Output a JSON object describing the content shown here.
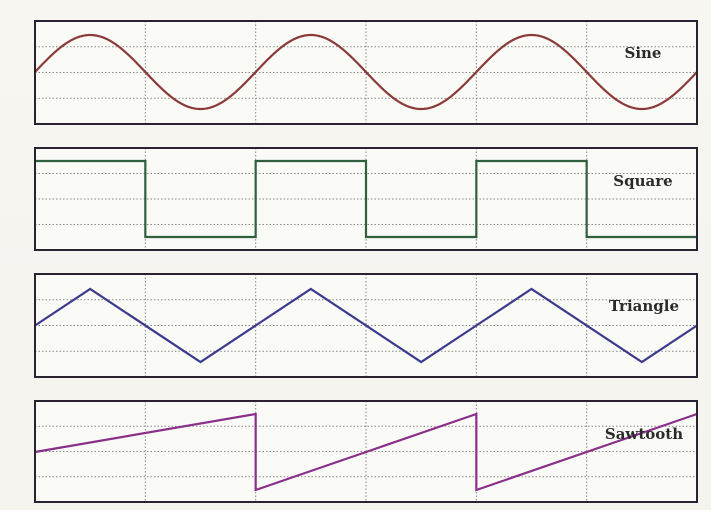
{
  "colors": {
    "background": "#f6f4ef",
    "panel_fill": "#fafaf7",
    "frame": "#2a2233",
    "grid": "#888888",
    "sine": "#8b3a3a",
    "square": "#2f5f3c",
    "triangle": "#3b3a8c",
    "sawtooth": "#8a2f8a"
  },
  "waves": [
    {
      "key": "sine",
      "label": "Sine",
      "shape": "sine",
      "cycles": 3,
      "color": "#8b3a3a"
    },
    {
      "key": "square",
      "label": "Square",
      "shape": "square",
      "cycles": 3,
      "color": "#2f5f3c"
    },
    {
      "key": "triangle",
      "label": "Triangle",
      "shape": "triangle",
      "cycles": 3,
      "color": "#3b3a8c"
    },
    {
      "key": "sawtooth",
      "label": "Sawtooth",
      "shape": "sawtooth",
      "cycles": 3,
      "color": "#8a2f8a"
    }
  ]
}
